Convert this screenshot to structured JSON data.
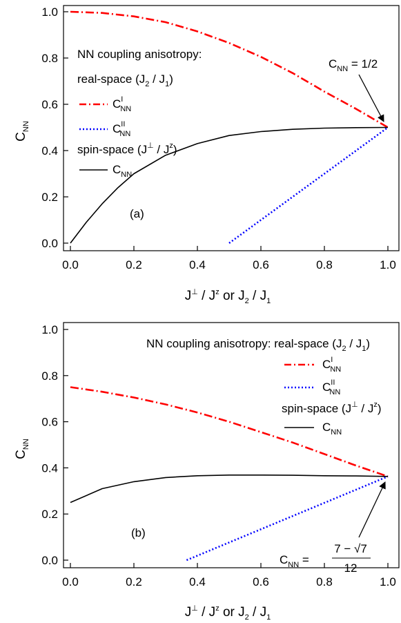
{
  "chart_data": [
    {
      "type": "line",
      "panel_label": "(a)",
      "xlabel": "J⊥ / Jᶻ or J₂ / J₁",
      "ylabel": "C_NN",
      "xlim": [
        0.0,
        1.0
      ],
      "ylim": [
        0.0,
        1.0
      ],
      "xticks": [
        "0.0",
        "0.2",
        "0.4",
        "0.6",
        "0.8",
        "1.0"
      ],
      "yticks": [
        "0.0",
        "0.2",
        "0.4",
        "0.6",
        "0.8",
        "1.0"
      ],
      "legend_header_real": "NN coupling anisotropy:",
      "legend_sub_real": "real-space (J₂ / J₁)",
      "legend_sub_spin": "spin-space (J⊥ / Jᶻ)",
      "legend_placement": "left",
      "annotation": "C_NN = 1/2",
      "series": [
        {
          "name": "C^I_NN",
          "style": "dash-dot",
          "color": "#ff0000",
          "x": [
            0.0,
            0.1,
            0.2,
            0.3,
            0.4,
            0.5,
            0.6,
            0.7,
            0.8,
            0.9,
            1.0
          ],
          "y": [
            1.0,
            0.995,
            0.98,
            0.955,
            0.915,
            0.865,
            0.805,
            0.735,
            0.655,
            0.58,
            0.5
          ]
        },
        {
          "name": "C^II_NN",
          "style": "dotted",
          "color": "#0000ff",
          "x": [
            0.5,
            1.0
          ],
          "y": [
            0.0,
            0.5
          ]
        },
        {
          "name": "C_NN",
          "style": "solid",
          "color": "#000000",
          "x": [
            0.0,
            0.05,
            0.1,
            0.15,
            0.2,
            0.3,
            0.4,
            0.5,
            0.6,
            0.7,
            0.8,
            0.9,
            1.0
          ],
          "y": [
            0.0,
            0.09,
            0.17,
            0.24,
            0.3,
            0.38,
            0.43,
            0.465,
            0.482,
            0.492,
            0.497,
            0.499,
            0.5
          ]
        }
      ]
    },
    {
      "type": "line",
      "panel_label": "(b)",
      "xlabel": "J⊥ / Jᶻ or J₂ / J₁",
      "ylabel": "C_NN",
      "xlim": [
        0.0,
        1.0
      ],
      "ylim": [
        0.0,
        1.0
      ],
      "xticks": [
        "0.0",
        "0.2",
        "0.4",
        "0.6",
        "0.8",
        "1.0"
      ],
      "yticks": [
        "0.0",
        "0.2",
        "0.4",
        "0.6",
        "0.8",
        "1.0"
      ],
      "legend_header_real": "NN coupling anisotropy:  real-space (J₂ / J₁)",
      "legend_sub_spin": "spin-space (J⊥ / Jᶻ)",
      "legend_placement": "top-right",
      "annotation_prefix": "C_NN =",
      "annotation_numerator": "7 − √7",
      "annotation_denominator": "12",
      "series": [
        {
          "name": "C^I_NN",
          "style": "dash-dot",
          "color": "#ff0000",
          "x": [
            0.0,
            0.1,
            0.2,
            0.3,
            0.4,
            0.5,
            0.6,
            0.7,
            0.8,
            0.9,
            1.0
          ],
          "y": [
            0.75,
            0.73,
            0.705,
            0.675,
            0.64,
            0.6,
            0.555,
            0.51,
            0.46,
            0.41,
            0.363
          ]
        },
        {
          "name": "C^II_NN",
          "style": "dotted",
          "color": "#0000ff",
          "x": [
            0.366,
            1.0
          ],
          "y": [
            0.0,
            0.363
          ]
        },
        {
          "name": "C_NN",
          "style": "solid",
          "color": "#000000",
          "x": [
            0.0,
            0.1,
            0.2,
            0.3,
            0.4,
            0.5,
            0.6,
            0.7,
            0.8,
            0.9,
            1.0
          ],
          "y": [
            0.25,
            0.31,
            0.34,
            0.358,
            0.366,
            0.369,
            0.369,
            0.368,
            0.366,
            0.365,
            0.363
          ]
        }
      ]
    }
  ]
}
